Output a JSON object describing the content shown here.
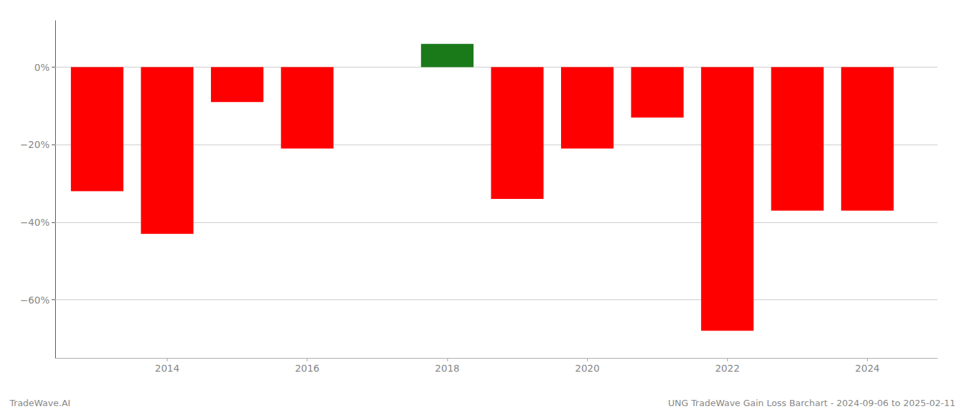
{
  "chart_data": {
    "type": "bar",
    "x": [
      2013,
      2014,
      2015,
      2016,
      2017,
      2018,
      2019,
      2020,
      2021,
      2022,
      2023,
      2024
    ],
    "values": [
      -32,
      -43,
      -9,
      -21,
      0,
      6,
      -34,
      -21,
      -13,
      -68,
      -37,
      -37
    ],
    "colors": [
      "#ff0000",
      "#ff0000",
      "#ff0000",
      "#ff0000",
      "#ff0000",
      "#1a7a1a",
      "#ff0000",
      "#ff0000",
      "#ff0000",
      "#ff0000",
      "#ff0000",
      "#ff0000"
    ],
    "xlim": [
      2012.4,
      2025
    ],
    "xticks": [
      2014,
      2016,
      2018,
      2020,
      2022,
      2024
    ],
    "ylim": [
      -75,
      12
    ],
    "yticks": [
      {
        "value": 0,
        "label": "0%"
      },
      {
        "value": -20,
        "label": "−20%"
      },
      {
        "value": -40,
        "label": "−40%"
      },
      {
        "value": -60,
        "label": "−60%"
      }
    ],
    "grid": true,
    "annotations": [
      "TradeWave.AI",
      "UNG TradeWave Gain Loss Barchart - 2024-09-06 to 2025-02-11"
    ]
  }
}
